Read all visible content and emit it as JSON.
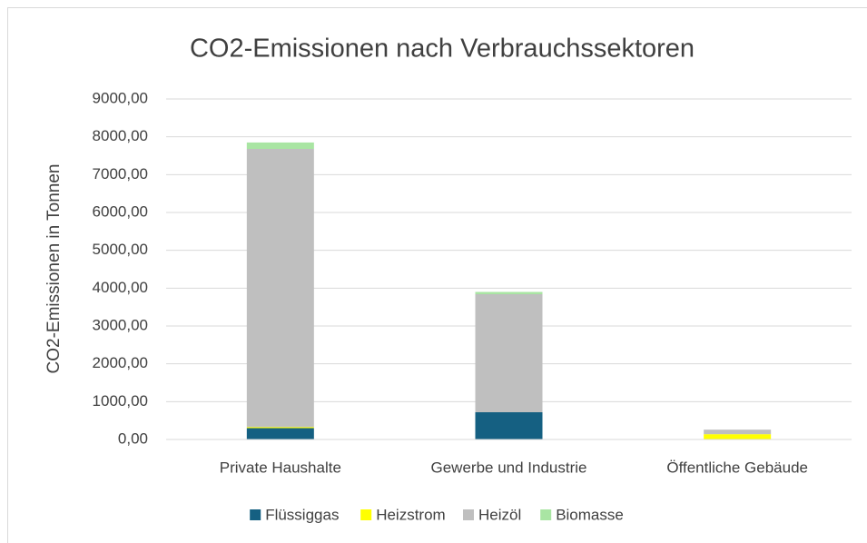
{
  "chart_data": {
    "type": "bar",
    "stacked": true,
    "title": "CO2-Emissionen  nach Verbrauchssektoren",
    "y_label": "CO2-Emissionen in Tonnen",
    "categories": [
      "Private Haushalte",
      "Gewerbe und Industrie",
      "Öffentliche Gebäude"
    ],
    "series": [
      {
        "name": "Flüssiggas",
        "color": "#156082",
        "values": [
          300,
          720,
          0
        ]
      },
      {
        "name": "Heizstrom",
        "color": "#ffff00",
        "values": [
          30,
          0,
          140
        ]
      },
      {
        "name": "Heizöl",
        "color": "#bfbfbf",
        "values": [
          7350,
          3120,
          120
        ]
      },
      {
        "name": "Biomasse",
        "color": "#a9e5a3",
        "values": [
          170,
          60,
          0
        ]
      }
    ],
    "ylim": [
      0,
      9000
    ],
    "yticks": [
      {
        "value": 0,
        "label": "0,00"
      },
      {
        "value": 1000,
        "label": "1000,00"
      },
      {
        "value": 2000,
        "label": "2000,00"
      },
      {
        "value": 3000,
        "label": "3000,00"
      },
      {
        "value": 4000,
        "label": "4000,00"
      },
      {
        "value": 5000,
        "label": "5000,00"
      },
      {
        "value": 6000,
        "label": "6000,00"
      },
      {
        "value": 7000,
        "label": "7000,00"
      },
      {
        "value": 8000,
        "label": "8000,00"
      },
      {
        "value": 9000,
        "label": "9000,00"
      }
    ],
    "grid": true,
    "legend": "bottom"
  }
}
